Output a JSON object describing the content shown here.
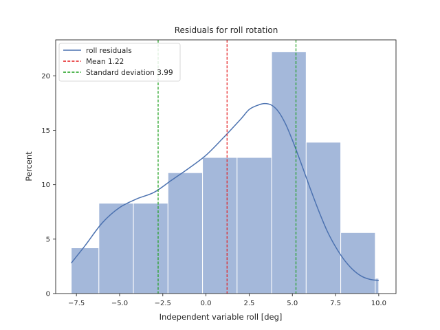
{
  "chart_data": {
    "type": "bar",
    "title": "Residuals for roll rotation",
    "xlabel": "Independent variable roll [deg]",
    "ylabel": "Percent",
    "xlim": [
      -8.7,
      11.0
    ],
    "ylim": [
      0,
      23.3
    ],
    "xticks": [
      -7.5,
      -5.0,
      -2.5,
      0.0,
      2.5,
      5.0,
      7.5,
      10.0
    ],
    "xtick_labels": [
      "−7.5",
      "−5.0",
      "−2.5",
      "0.0",
      "2.5",
      "5.0",
      "7.5",
      "10.0"
    ],
    "yticks": [
      0,
      5,
      10,
      15,
      20
    ],
    "ytick_labels": [
      "0",
      "5",
      "10",
      "15",
      "20"
    ],
    "grid": false,
    "legend_position": "top-left",
    "bins": [
      {
        "x0": -7.8,
        "x1": -6.2,
        "value": 4.2
      },
      {
        "x0": -6.2,
        "x1": -4.2,
        "value": 8.3
      },
      {
        "x0": -4.2,
        "x1": -2.2,
        "value": 8.3
      },
      {
        "x0": -2.2,
        "x1": -0.2,
        "value": 11.1
      },
      {
        "x0": -0.2,
        "x1": 1.8,
        "value": 12.5
      },
      {
        "x0": 1.8,
        "x1": 3.8,
        "value": 12.5
      },
      {
        "x0": 3.8,
        "x1": 5.8,
        "value": 22.2
      },
      {
        "x0": 5.8,
        "x1": 7.8,
        "value": 13.9
      },
      {
        "x0": 7.8,
        "x1": 9.8,
        "value": 5.6
      },
      {
        "x0": 9.8,
        "x1": 10.0,
        "value": 1.4
      }
    ],
    "kde": {
      "name": "roll residuals",
      "color": "#4c72b0",
      "x": [
        -7.8,
        -7.0,
        -6.0,
        -5.0,
        -4.0,
        -3.0,
        -2.0,
        -1.0,
        0.0,
        1.0,
        2.0,
        2.5,
        3.0,
        3.4,
        3.8,
        4.2,
        4.6,
        5.0,
        5.5,
        6.0,
        6.5,
        7.0,
        7.5,
        8.0,
        8.5,
        9.0,
        9.5,
        10.0
      ],
      "y": [
        2.8,
        4.4,
        6.5,
        7.9,
        8.7,
        9.3,
        10.4,
        11.5,
        12.7,
        14.3,
        16.0,
        16.9,
        17.3,
        17.45,
        17.3,
        16.7,
        15.6,
        14.1,
        12.0,
        9.8,
        7.7,
        5.8,
        4.3,
        3.1,
        2.2,
        1.6,
        1.3,
        1.2
      ]
    },
    "lines": [
      {
        "name": "Mean 1.22",
        "x": 1.22,
        "color": "#e41a1c"
      },
      {
        "name": "Standard deviation 3.99",
        "x": -2.77,
        "color": "#1a9e1a"
      },
      {
        "name": "Standard deviation 3.99",
        "x": 5.21,
        "color": "#1a9e1a"
      }
    ],
    "bar_color": "#a4b8da",
    "legend": [
      {
        "label": "roll residuals",
        "style": "solid",
        "color": "#4c72b0"
      },
      {
        "label": "Mean 1.22",
        "style": "dashed",
        "color": "#e41a1c"
      },
      {
        "label": "Standard deviation 3.99",
        "style": "dashed",
        "color": "#1a9e1a"
      }
    ]
  }
}
